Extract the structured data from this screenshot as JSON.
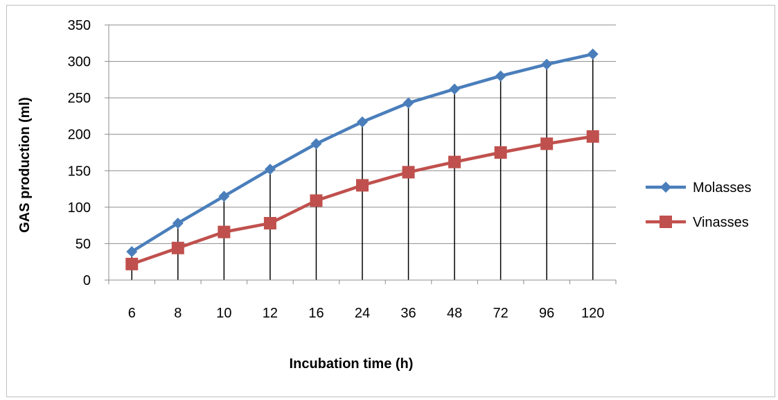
{
  "chart_data": {
    "type": "line",
    "title": "",
    "xlabel": "Incubation time (h)",
    "ylabel": "GAS production (ml)",
    "categories": [
      "6",
      "8",
      "10",
      "12",
      "16",
      "24",
      "36",
      "48",
      "72",
      "96",
      "120"
    ],
    "ylim": [
      0,
      350
    ],
    "yticks": [
      0,
      50,
      100,
      150,
      200,
      250,
      300,
      350
    ],
    "grid": true,
    "legend_position": "right",
    "series": [
      {
        "name": "Molasses",
        "color": "#4a7ebb",
        "marker": "diamond",
        "values": [
          39,
          78,
          115,
          152,
          187,
          217,
          243,
          262,
          280,
          296,
          310
        ]
      },
      {
        "name": "Vinasses",
        "color": "#c0504d",
        "marker": "square",
        "values": [
          22,
          44,
          66,
          78,
          109,
          130,
          148,
          162,
          175,
          187,
          197
        ]
      }
    ]
  }
}
